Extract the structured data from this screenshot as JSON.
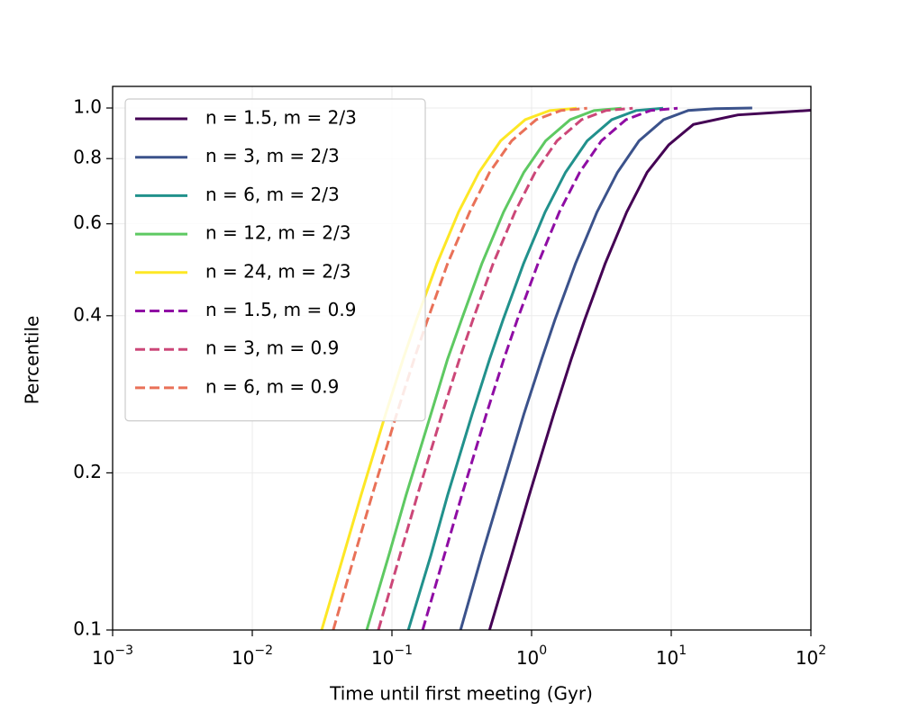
{
  "chart_data": {
    "type": "line",
    "xlabel": "Time until first meeting (Gyr)",
    "ylabel": "Percentile",
    "xscale": "log",
    "yscale": "log",
    "xlim": [
      0.001,
      100
    ],
    "ylim": [
      0.1,
      1.1
    ],
    "xticks": [
      {
        "value": 0.001,
        "label": "10",
        "exponent": "−3"
      },
      {
        "value": 0.01,
        "label": "10",
        "exponent": "−2"
      },
      {
        "value": 0.1,
        "label": "10",
        "exponent": "−1"
      },
      {
        "value": 1,
        "label": "10",
        "exponent": "0"
      },
      {
        "value": 10,
        "label": "10",
        "exponent": "1"
      },
      {
        "value": 100,
        "label": "10",
        "exponent": "2"
      }
    ],
    "yticks": [
      0.1,
      0.2,
      0.4,
      0.6,
      0.8,
      {
        "value": 1,
        "label": "1.0"
      }
    ],
    "grid": true,
    "legend": "upper left",
    "series": [
      {
        "name": "n = 1.5, m = 2/3",
        "color": "#440154",
        "dash": "solid",
        "x": [
          0.5,
          0.72,
          0.96,
          1.44,
          1.92,
          2.4,
          3.36,
          4.8,
          6.72,
          9.6,
          14.4,
          30,
          100
        ],
        "values": [
          0.1,
          0.139,
          0.181,
          0.259,
          0.33,
          0.393,
          0.503,
          0.632,
          0.753,
          0.85,
          0.93,
          0.97,
          0.99
        ]
      },
      {
        "name": "n = 3, m = 2/3",
        "color": "#3b528b",
        "dash": "solid",
        "x": [
          0.31,
          0.44,
          0.59,
          0.88,
          1.18,
          1.47,
          2.06,
          2.94,
          4.12,
          5.88,
          8.82,
          13.2,
          20.6,
          38
        ],
        "values": [
          0.1,
          0.139,
          0.181,
          0.259,
          0.33,
          0.393,
          0.503,
          0.632,
          0.753,
          0.865,
          0.95,
          0.989,
          0.997,
          1.0
        ]
      },
      {
        "name": "n = 6, m = 2/3",
        "color": "#21918c",
        "dash": "solid",
        "x": [
          0.131,
          0.19,
          0.25,
          0.375,
          0.5,
          0.625,
          0.875,
          1.25,
          1.75,
          2.5,
          3.75,
          5.6,
          8.75
        ],
        "values": [
          0.1,
          0.139,
          0.181,
          0.259,
          0.33,
          0.393,
          0.503,
          0.632,
          0.753,
          0.865,
          0.95,
          0.989,
          0.999
        ]
      },
      {
        "name": "n = 12, m = 2/3",
        "color": "#5ec962",
        "dash": "solid",
        "x": [
          0.066,
          0.095,
          0.126,
          0.19,
          0.25,
          0.315,
          0.44,
          0.63,
          0.88,
          1.26,
          1.89,
          2.8,
          4.4
        ],
        "values": [
          0.1,
          0.139,
          0.181,
          0.259,
          0.33,
          0.393,
          0.503,
          0.632,
          0.753,
          0.865,
          0.95,
          0.989,
          0.999
        ]
      },
      {
        "name": "n = 24, m = 2/3",
        "color": "#fde725",
        "dash": "solid",
        "x": [
          0.0314,
          0.045,
          0.06,
          0.09,
          0.12,
          0.15,
          0.21,
          0.3,
          0.42,
          0.6,
          0.9,
          1.35,
          2.1
        ],
        "values": [
          0.1,
          0.139,
          0.181,
          0.259,
          0.33,
          0.393,
          0.503,
          0.632,
          0.753,
          0.865,
          0.95,
          0.989,
          0.999
        ]
      },
      {
        "name": "n = 1.5, m = 0.9",
        "color": "#8f0da4",
        "dash": "dashed",
        "x": [
          0.166,
          0.237,
          0.316,
          0.474,
          0.632,
          0.79,
          1.11,
          1.58,
          2.21,
          3.16,
          4.74,
          7.1,
          11.1
        ],
        "values": [
          0.1,
          0.139,
          0.181,
          0.259,
          0.33,
          0.393,
          0.503,
          0.632,
          0.753,
          0.865,
          0.95,
          0.989,
          0.999
        ]
      },
      {
        "name": "n = 3, m = 0.9",
        "color": "#cc4778",
        "dash": "dashed",
        "x": [
          0.08,
          0.114,
          0.152,
          0.228,
          0.304,
          0.38,
          0.53,
          0.76,
          1.06,
          1.52,
          2.28,
          3.4,
          5.3
        ],
        "values": [
          0.1,
          0.139,
          0.181,
          0.259,
          0.33,
          0.393,
          0.503,
          0.632,
          0.753,
          0.865,
          0.95,
          0.989,
          0.999
        ]
      },
      {
        "name": "n = 6, m = 0.9",
        "color": "#e97158",
        "dash": "dashed",
        "x": [
          0.038,
          0.054,
          0.072,
          0.108,
          0.144,
          0.18,
          0.25,
          0.36,
          0.5,
          0.72,
          1.08,
          1.62,
          2.5
        ],
        "values": [
          0.1,
          0.139,
          0.181,
          0.259,
          0.33,
          0.393,
          0.503,
          0.632,
          0.753,
          0.865,
          0.95,
          0.989,
          0.999
        ]
      }
    ]
  }
}
